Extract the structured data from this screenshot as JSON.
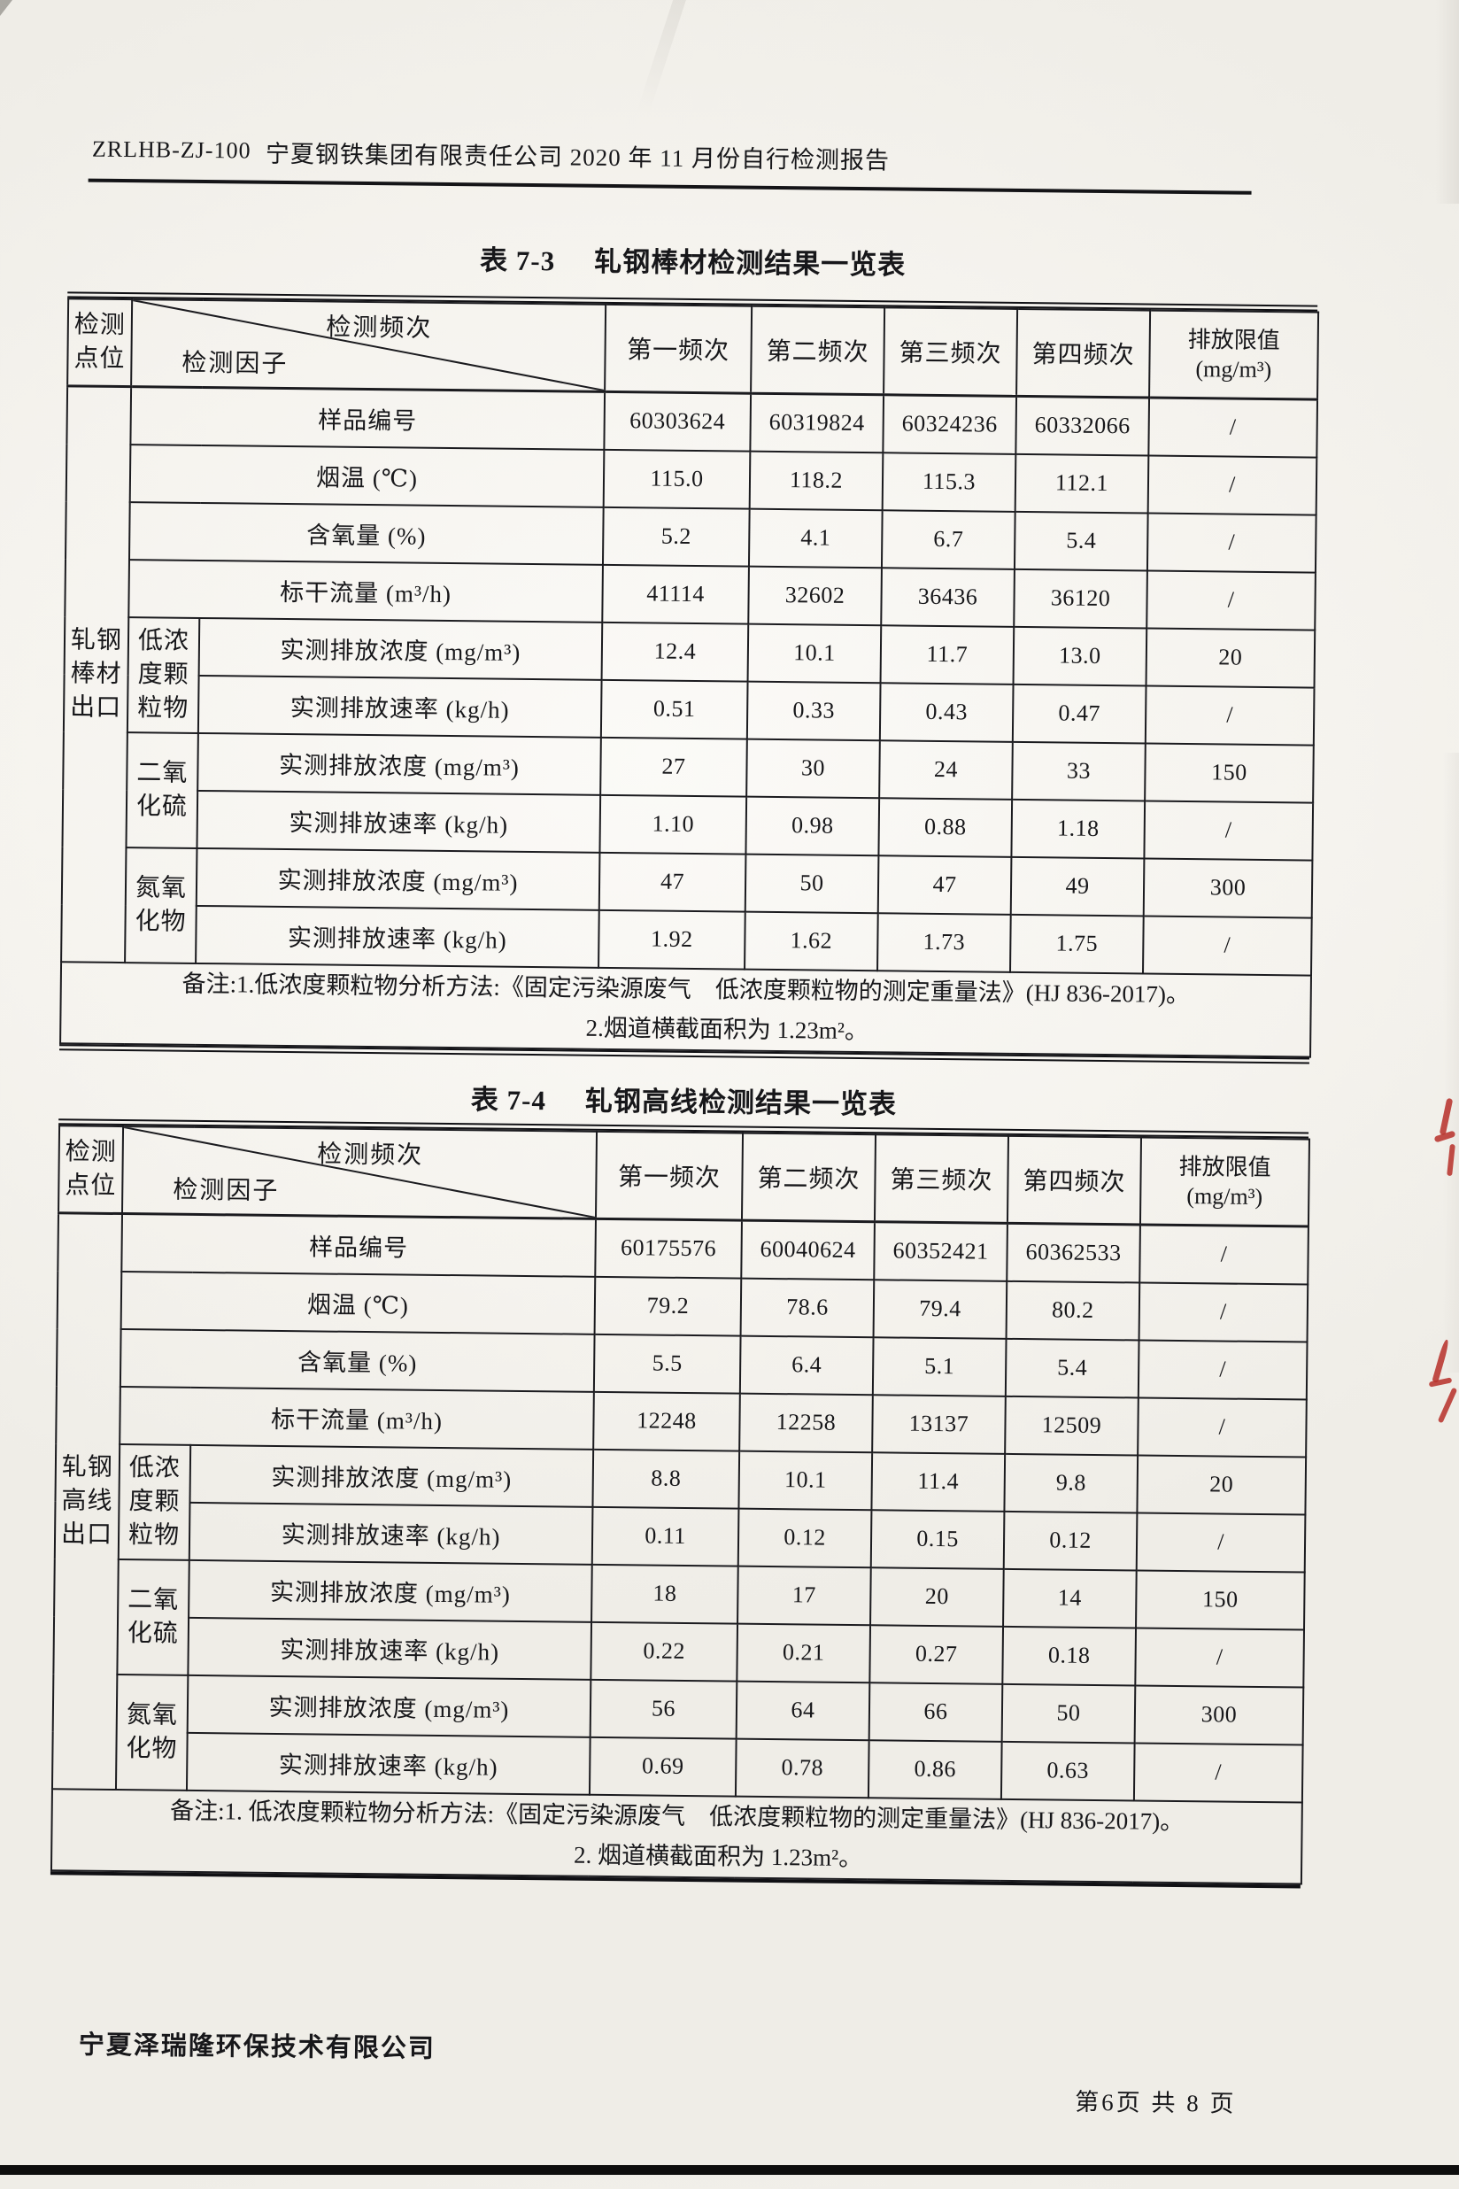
{
  "page": {
    "doc_code": "ZRLHB-ZJ-100",
    "header_title": "宁夏钢铁集团有限责任公司 2020 年 11 月份自行检测报告",
    "footer_company": "宁夏泽瑞隆环保技术有限公司",
    "footer_page": "第6页 共 8 页"
  },
  "tables": [
    {
      "title_no": "表 7-3",
      "title_text": "轧钢棒材检测结果一览表",
      "corner_top": "检测频次",
      "corner_left": "检测因子",
      "point_header": "检测点位",
      "freq_headers": [
        "第一频次",
        "第二频次",
        "第三频次",
        "第四频次"
      ],
      "limit_header": [
        "排放限值",
        "(mg/m³)"
      ],
      "point_label": "轧钢棒材出口",
      "param_rows": [
        {
          "label": "样品编号",
          "values": [
            "60303624",
            "60319824",
            "60324236",
            "60332066"
          ],
          "limit": "/"
        },
        {
          "label": "烟温 (℃)",
          "values": [
            "115.0",
            "118.2",
            "115.3",
            "112.1"
          ],
          "limit": "/"
        },
        {
          "label": "含氧量 (%)",
          "values": [
            "5.2",
            "4.1",
            "6.7",
            "5.4"
          ],
          "limit": "/"
        },
        {
          "label": "标干流量 (m³/h)",
          "values": [
            "41114",
            "32602",
            "36436",
            "36120"
          ],
          "limit": "/"
        }
      ],
      "pollutant_groups": [
        {
          "name": "低浓度颗粒物",
          "rows": [
            {
              "label": "实测排放浓度 (mg/m³)",
              "values": [
                "12.4",
                "10.1",
                "11.7",
                "13.0"
              ],
              "limit": "20"
            },
            {
              "label": "实测排放速率 (kg/h)",
              "values": [
                "0.51",
                "0.33",
                "0.43",
                "0.47"
              ],
              "limit": "/"
            }
          ]
        },
        {
          "name": "二氧化硫",
          "rows": [
            {
              "label": "实测排放浓度 (mg/m³)",
              "values": [
                "27",
                "30",
                "24",
                "33"
              ],
              "limit": "150"
            },
            {
              "label": "实测排放速率 (kg/h)",
              "values": [
                "1.10",
                "0.98",
                "0.88",
                "1.18"
              ],
              "limit": "/"
            }
          ]
        },
        {
          "name": "氮氧化物",
          "rows": [
            {
              "label": "实测排放浓度 (mg/m³)",
              "values": [
                "47",
                "50",
                "47",
                "49"
              ],
              "limit": "300"
            },
            {
              "label": "实测排放速率 (kg/h)",
              "values": [
                "1.92",
                "1.62",
                "1.73",
                "1.75"
              ],
              "limit": "/"
            }
          ]
        }
      ],
      "note_line1": "备注:1.低浓度颗粒物分析方法:《固定污染源废气　低浓度颗粒物的测定重量法》(HJ 836-2017)。",
      "note_line2": "2.烟道横截面积为 1.23m²。"
    },
    {
      "title_no": "表 7-4",
      "title_text": "轧钢高线检测结果一览表",
      "corner_top": "检测频次",
      "corner_left": "检测因子",
      "point_header": "检测点位",
      "freq_headers": [
        "第一频次",
        "第二频次",
        "第三频次",
        "第四频次"
      ],
      "limit_header": [
        "排放限值",
        "(mg/m³)"
      ],
      "point_label": "轧钢高线出口",
      "param_rows": [
        {
          "label": "样品编号",
          "values": [
            "60175576",
            "60040624",
            "60352421",
            "60362533"
          ],
          "limit": "/"
        },
        {
          "label": "烟温 (℃)",
          "values": [
            "79.2",
            "78.6",
            "79.4",
            "80.2"
          ],
          "limit": "/"
        },
        {
          "label": "含氧量 (%)",
          "values": [
            "5.5",
            "6.4",
            "5.1",
            "5.4"
          ],
          "limit": "/"
        },
        {
          "label": "标干流量 (m³/h)",
          "values": [
            "12248",
            "12258",
            "13137",
            "12509"
          ],
          "limit": "/"
        }
      ],
      "pollutant_groups": [
        {
          "name": "低浓度颗粒物",
          "rows": [
            {
              "label": "实测排放浓度 (mg/m³)",
              "values": [
                "8.8",
                "10.1",
                "11.4",
                "9.8"
              ],
              "limit": "20"
            },
            {
              "label": "实测排放速率 (kg/h)",
              "values": [
                "0.11",
                "0.12",
                "0.15",
                "0.12"
              ],
              "limit": "/"
            }
          ]
        },
        {
          "name": "二氧化硫",
          "rows": [
            {
              "label": "实测排放浓度 (mg/m³)",
              "values": [
                "18",
                "17",
                "20",
                "14"
              ],
              "limit": "150"
            },
            {
              "label": "实测排放速率 (kg/h)",
              "values": [
                "0.22",
                "0.21",
                "0.27",
                "0.18"
              ],
              "limit": "/"
            }
          ]
        },
        {
          "name": "氮氧化物",
          "rows": [
            {
              "label": "实测排放浓度 (mg/m³)",
              "values": [
                "56",
                "64",
                "66",
                "50"
              ],
              "limit": "300"
            },
            {
              "label": "实测排放速率 (kg/h)",
              "values": [
                "0.69",
                "0.78",
                "0.86",
                "0.63"
              ],
              "limit": "/"
            }
          ]
        }
      ],
      "note_line1": "备注:1. 低浓度颗粒物分析方法:《固定污染源废气　低浓度颗粒物的测定重量法》(HJ 836-2017)。",
      "note_line2": "2. 烟道横截面积为 1.23m²。"
    }
  ]
}
